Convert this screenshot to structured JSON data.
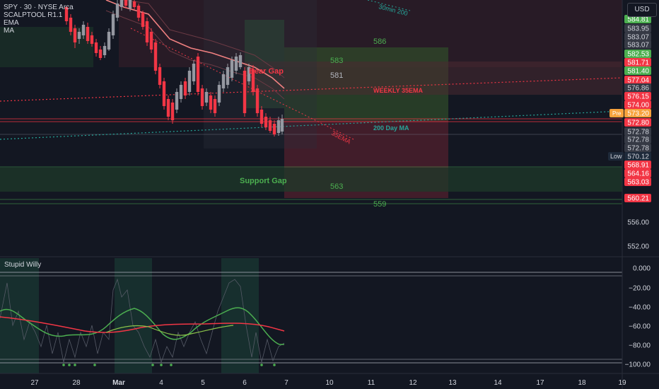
{
  "legend": {
    "symbol": "SPY · 30 · NYSE Arca",
    "indicators": [
      "SCALPTOOL R1.1",
      "EMA",
      "MA"
    ]
  },
  "currency_button": "USD",
  "indicator_pane_title": "Stupid Willy",
  "annotations": {
    "bear_gap": "Bear Gap",
    "support_gap": "Support Gap",
    "weekly_ema": "WEEKLY 35EMA",
    "day_ma": "200 Day MA",
    "ema35": "35EMA",
    "min200": "30min 200",
    "levels": [
      "586",
      "583",
      "581",
      "563",
      "559"
    ]
  },
  "chart_data": {
    "type": "candlestick",
    "symbol": "SPY",
    "interval": "30",
    "exchange": "NYSE Arca",
    "price_axis_ticks": [
      556.0,
      552.0
    ],
    "price_labels": [
      {
        "value": "584.81",
        "color": "#4caf50"
      },
      {
        "value": "583.95",
        "color": "#363a45"
      },
      {
        "value": "583.07",
        "color": "#363a45"
      },
      {
        "value": "583.07",
        "color": "#363a45"
      },
      {
        "value": "582.53",
        "color": "#4caf50"
      },
      {
        "value": "581.71",
        "color": "#f23645"
      },
      {
        "value": "581.40",
        "color": "#4caf50"
      },
      {
        "value": "577.04",
        "color": "#f23645"
      },
      {
        "value": "576.86",
        "color": "#363a45"
      },
      {
        "value": "576.15",
        "color": "#f23645"
      },
      {
        "value": "574.00",
        "color": "#f23645"
      },
      {
        "value": "573.20",
        "color": "#f7a23c"
      },
      {
        "value": "572.80",
        "color": "#f23645"
      },
      {
        "value": "572.78",
        "color": "#363a45"
      },
      {
        "value": "572.78",
        "color": "#363a45"
      },
      {
        "value": "572.78",
        "color": "#363a45"
      },
      {
        "value": "570.12",
        "color": "#1e2a3a"
      },
      {
        "value": "568.91",
        "color": "#f23645"
      },
      {
        "value": "564.16",
        "color": "#f23645"
      },
      {
        "value": "563.03",
        "color": "#f23645"
      },
      {
        "value": "560.21",
        "color": "#f23645"
      }
    ],
    "pre_label": "Pre",
    "low_label": "Low",
    "indicator_ticks": [
      "0.000",
      "−20.00",
      "−40.00",
      "−60.00",
      "−80.00",
      "−100.00"
    ],
    "time_labels": [
      "27",
      "28",
      "Mar",
      "4",
      "5",
      "6",
      "7",
      "10",
      "11",
      "12",
      "13",
      "14",
      "17",
      "18",
      "19"
    ]
  }
}
